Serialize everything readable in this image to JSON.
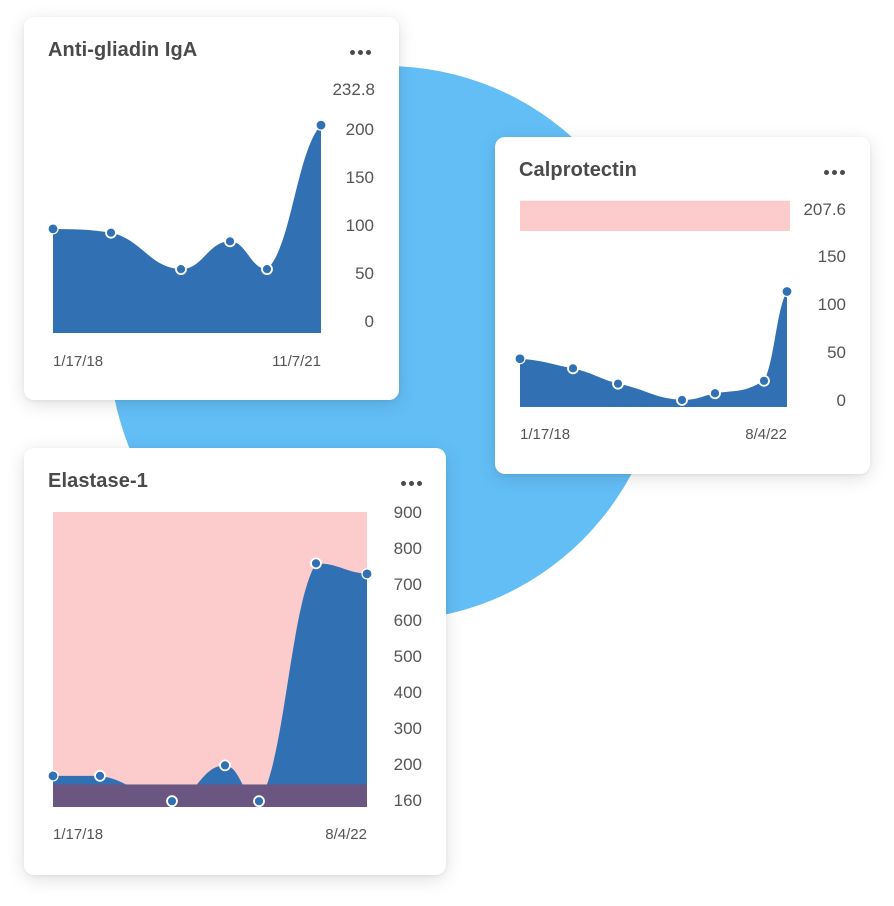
{
  "colors": {
    "area": "#3270b4",
    "point_fill": "#3270b4",
    "point_stroke": "#ffffff",
    "reference_band": "#fccccc",
    "reference_band_overlap": "#6b5681",
    "background_circle": "#63bef6"
  },
  "menu_icon": "more-horizontal-icon",
  "chart_data": [
    {
      "id": "anti_gliadin",
      "type": "area",
      "title": "Anti-gliadin IgA",
      "x_start_label": "1/17/18",
      "x_end_label": "11/7/21",
      "y_ticks": [
        "200",
        "150",
        "100",
        "50",
        "0"
      ],
      "max_label": "232.8",
      "ylim": [
        0,
        232.8
      ],
      "grid": false,
      "series": [
        {
          "values": [
            96,
            92,
            54,
            83,
            54,
            204
          ]
        }
      ]
    },
    {
      "id": "calprotectin",
      "type": "area",
      "title": "Calprotectin",
      "x_start_label": "1/17/18",
      "x_end_label": "8/4/22",
      "y_ticks": [
        "150",
        "100",
        "50",
        "0"
      ],
      "max_label": "207.6",
      "ylim": [
        0,
        207.6
      ],
      "reference_range": [
        176,
        207.6
      ],
      "grid": false,
      "series": [
        {
          "values": [
            43,
            33,
            17,
            0,
            7,
            20,
            113
          ]
        }
      ]
    },
    {
      "id": "elastase",
      "type": "area",
      "title": "Elastase-1",
      "x_start_label": "1/17/18",
      "x_end_label": "8/4/22",
      "y_ticks": [
        "900",
        "800",
        "700",
        "600",
        "500",
        "400",
        "300",
        "200",
        "160"
      ],
      "ylim": [
        160,
        900
      ],
      "reference_range": [
        200,
        900
      ],
      "grid": false,
      "series": [
        {
          "values": [
            222,
            222,
            157,
            249,
            157,
            768,
            741
          ]
        }
      ]
    }
  ]
}
